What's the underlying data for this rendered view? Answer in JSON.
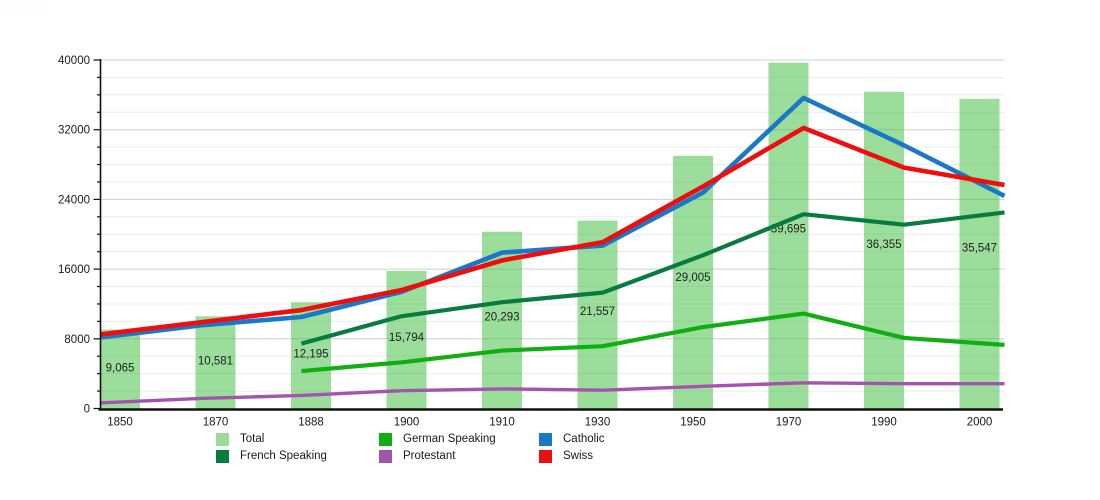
{
  "chart_data": {
    "type": "combo-bar-line",
    "title": "",
    "xlabel": "",
    "ylabel": "",
    "categories": [
      "1850",
      "1870",
      "1888",
      "1900",
      "1910",
      "1930",
      "1950",
      "1970",
      "1990",
      "2000"
    ],
    "ylim": [
      0,
      40000
    ],
    "ytick_values": [
      0,
      8000,
      16000,
      24000,
      32000,
      40000
    ],
    "ytick_labels": [
      "0",
      "8000",
      "16000",
      "24000",
      "32000",
      "40000"
    ],
    "minor_gridline_step": 2000,
    "grid": "horizontal-only",
    "legend_position": "bottom",
    "bar_series": {
      "name": "Total",
      "color": "#9ADD9A",
      "values": [
        9065,
        10581,
        12195,
        15794,
        20293,
        21557,
        29005,
        39695,
        36355,
        35547
      ],
      "labels": [
        "9,065",
        "10,581",
        "12,195",
        "15,794",
        "20,293",
        "21,557",
        "29,005",
        "39,695",
        "36,355",
        "35,547"
      ]
    },
    "line_series": [
      {
        "name": "German Speaking",
        "color": "#10AE10",
        "width": 4.2,
        "values": [
          null,
          null,
          4300,
          5300,
          6650,
          7150,
          9350,
          10900,
          8100,
          7300
        ]
      },
      {
        "name": "Catholic",
        "color": "#1B78C8",
        "width": 4.6,
        "values": [
          8150,
          9550,
          10500,
          13400,
          17900,
          18700,
          24800,
          35650,
          30200,
          24400
        ]
      },
      {
        "name": "French Speaking",
        "color": "#087C40",
        "width": 4.2,
        "values": [
          null,
          null,
          7450,
          10600,
          12200,
          13300,
          17600,
          22300,
          21100,
          22500
        ]
      },
      {
        "name": "Protestant",
        "color": "#A355AE",
        "width": 3.4,
        "values": [
          650,
          1150,
          1500,
          2050,
          2250,
          2100,
          2550,
          2950,
          2850,
          2850
        ]
      },
      {
        "name": "Swiss",
        "color": "#EE0E0E",
        "width": 4.6,
        "values": [
          8500,
          9900,
          11300,
          13600,
          17000,
          19100,
          25500,
          32200,
          27650,
          25650
        ]
      }
    ],
    "legend": [
      {
        "label": "Total",
        "color": "#9ADD9A"
      },
      {
        "label": "German Speaking",
        "color": "#10AE10"
      },
      {
        "label": "Catholic",
        "color": "#1B78C8"
      },
      {
        "label": "French Speaking",
        "color": "#087C40"
      },
      {
        "label": "Protestant",
        "color": "#A355AE"
      },
      {
        "label": "Swiss",
        "color": "#EE0E0E"
      }
    ]
  }
}
